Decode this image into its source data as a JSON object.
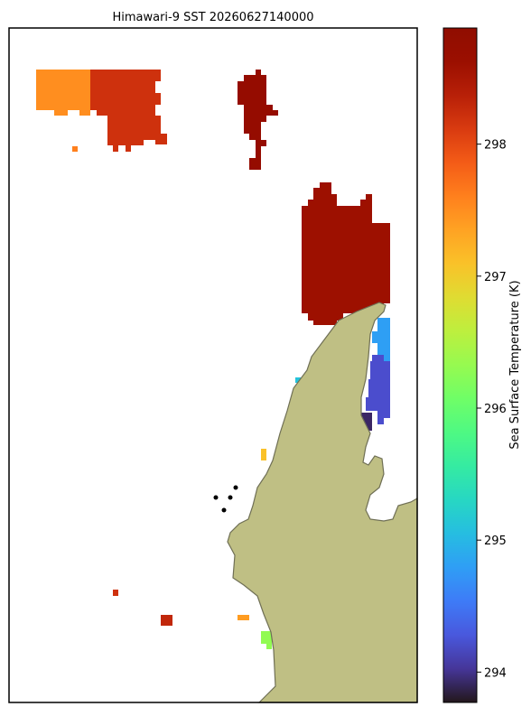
{
  "title": "Himawari-9 SST 20260627140000",
  "colorbar": {
    "label": "Sea Surface Temperature (K)",
    "lim": [
      293.77,
      298.88
    ],
    "ticks": [
      294,
      295,
      296,
      297,
      298
    ]
  },
  "sst_values": [
    297.5,
    298.2,
    298.7,
    298.6,
    294.8,
    294.2,
    293.9,
    295.1,
    297.1,
    298.2,
    298.3,
    297.4,
    296.3,
    297.6
  ]
}
